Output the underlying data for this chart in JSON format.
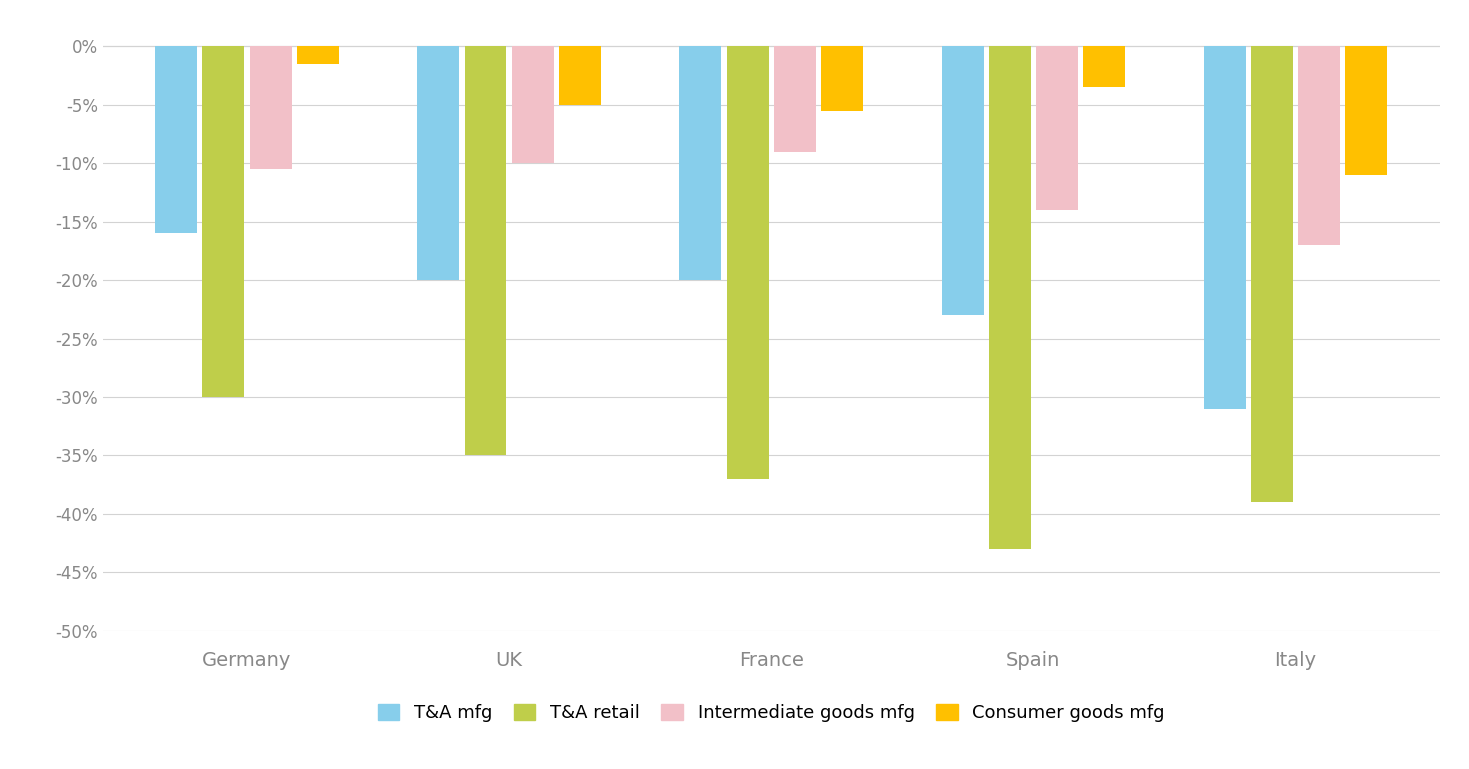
{
  "categories": [
    "Germany",
    "UK",
    "France",
    "Spain",
    "Italy"
  ],
  "series": {
    "T&A mfg": [
      -16,
      -20,
      -20,
      -23,
      -31
    ],
    "T&A retail": [
      -30,
      -35,
      -37,
      -43,
      -39
    ],
    "Intermediate goods mfg": [
      -10.5,
      -10,
      -9,
      -14,
      -17
    ],
    "Consumer goods mfg": [
      -1.5,
      -5,
      -5.5,
      -3.5,
      -11
    ]
  },
  "colors": {
    "T&A mfg": "#87CEEB",
    "T&A retail": "#BFCE4A",
    "Intermediate goods mfg": "#F2C0C8",
    "Consumer goods mfg": "#FFC000"
  },
  "ylim": [
    -50,
    2
  ],
  "yticks": [
    0,
    -5,
    -10,
    -15,
    -20,
    -25,
    -30,
    -35,
    -40,
    -45,
    -50
  ],
  "ytick_labels": [
    "0%",
    "-5%",
    "-10%",
    "-15%",
    "-20%",
    "-25%",
    "-30%",
    "-35%",
    "-40%",
    "-45%",
    "-50%"
  ],
  "background_color": "#FFFFFF",
  "grid_color": "#D3D3D3",
  "bar_width": 0.16,
  "tick_label_color": "#888888",
  "legend_labels": [
    "T&A mfg",
    "T&A retail",
    "Intermediate goods mfg",
    "Consumer goods mfg"
  ]
}
